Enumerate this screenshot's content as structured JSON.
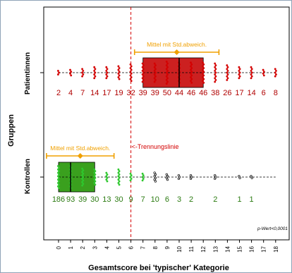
{
  "chart_data": {
    "type": "strip-boxplot",
    "xlabel": "Gesamtscore bei 'typischer' Kategorie",
    "ylabel": "Gruppen",
    "xlim": [
      0,
      18
    ],
    "x_ticks": [
      0,
      1,
      2,
      3,
      4,
      5,
      6,
      7,
      8,
      9,
      10,
      11,
      12,
      13,
      14,
      15,
      16,
      17,
      18
    ],
    "annotation": "p-Wert<0,0001",
    "cutoff": {
      "x": 6,
      "label": "<-Trennungslinie",
      "color": "#d40000"
    },
    "groups": [
      {
        "name": "Patientinnen",
        "color": "#d40000",
        "box_color": "#cc2020",
        "median_line_color": "#000000",
        "counts_by_score": [
          2,
          4,
          7,
          14,
          17,
          19,
          32,
          39,
          39,
          50,
          44,
          46,
          46,
          38,
          26,
          17,
          14,
          6,
          8
        ],
        "box": {
          "q1": 7,
          "median": 10,
          "q3": 12
        },
        "mean": 9.8,
        "sd": 3.5,
        "mean_label": "Mittel mit Std.abweich."
      },
      {
        "name": "Kontrollen",
        "color": "#2ec82e",
        "box_color": "#3aa01e",
        "median_line_color": "#000000",
        "counts_by_score": [
          186,
          93,
          39,
          30,
          13,
          30,
          9,
          7,
          10,
          6,
          3,
          2,
          null,
          2,
          null,
          1,
          1,
          null,
          null
        ],
        "count_labels": [
          "186",
          "93",
          "39",
          "30",
          "13",
          "30",
          "9",
          "7",
          "10",
          "6",
          "3",
          "2",
          "2",
          "1",
          "1"
        ],
        "count_label_scores": [
          0,
          1,
          2,
          3,
          4,
          5,
          6,
          7,
          8,
          9,
          10,
          11,
          13,
          15,
          16
        ],
        "box": {
          "q1": 0,
          "median": 1,
          "q3": 3
        },
        "mean": 1.8,
        "sd": 2.8,
        "mean_label": "Mittel mit Std.abweich."
      }
    ],
    "mean_marker_color": "#f0a000"
  }
}
